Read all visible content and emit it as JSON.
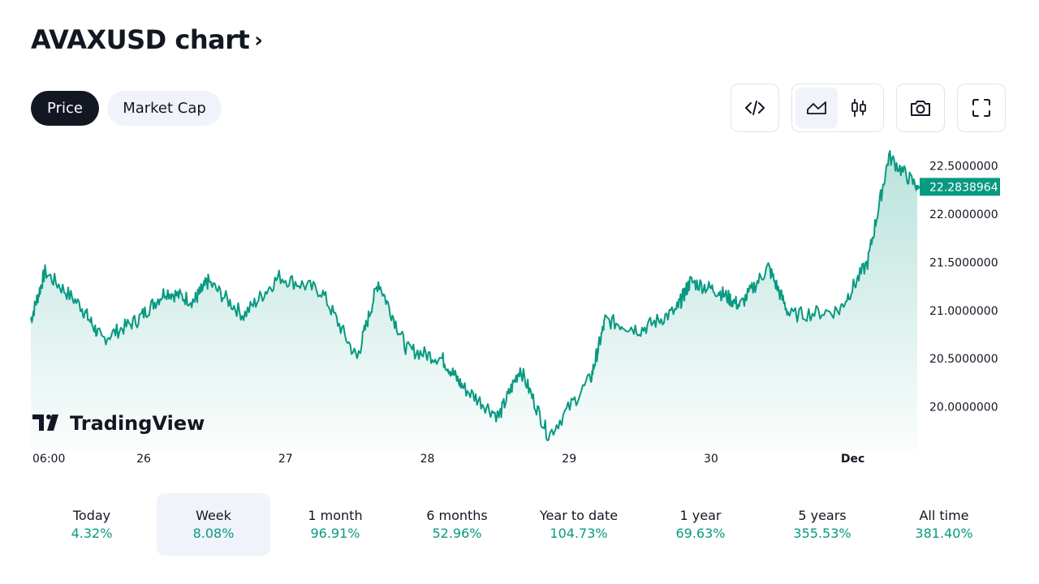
{
  "header": {
    "title": "AVAXUSD chart",
    "chevron": "›"
  },
  "tabs": [
    {
      "label": "Price",
      "active": true
    },
    {
      "label": "Market Cap",
      "active": false
    }
  ],
  "toolbar": {
    "embed_icon": "code-icon",
    "area_icon": "area-chart-icon",
    "candle_icon": "candlestick-icon",
    "snapshot_icon": "camera-icon",
    "fullscreen_icon": "fullscreen-icon"
  },
  "colors": {
    "accent": "#089981",
    "dark": "#131722",
    "light_bg": "#f0f3fa"
  },
  "watermark": "TradingView",
  "chart_data": {
    "type": "area",
    "symbol": "AVAXUSD",
    "current_price": 22.2838964,
    "current_price_label": "22.2838964",
    "y_ticks": [
      "22.5000000",
      "22.0000000",
      "21.5000000",
      "21.0000000",
      "20.5000000",
      "20.0000000"
    ],
    "y_tick_values": [
      22.5,
      22.0,
      21.5,
      21.0,
      20.5,
      20.0
    ],
    "x_ticks": [
      "06:00",
      "26",
      "27",
      "28",
      "29",
      "30",
      "Dec"
    ],
    "x": [
      0,
      0.25,
      0.5,
      0.75,
      1.0,
      1.25,
      1.5,
      1.75,
      2.0,
      2.25,
      2.5,
      2.75,
      3.0,
      3.25,
      3.5,
      3.75,
      4.0,
      4.25,
      4.5,
      4.75,
      5.0,
      5.25,
      5.5,
      5.75,
      6.0,
      6.25
    ],
    "x_tick_positions": [
      0,
      0.75,
      1.75,
      2.75,
      3.75,
      4.75,
      5.75
    ],
    "series": [
      {
        "values": [
          20.9,
          21.4,
          21.05,
          20.7,
          20.9,
          21.2,
          21.1,
          21.3,
          20.95,
          21.35,
          21.2,
          20.5,
          21.3,
          20.6,
          20.5,
          20.2,
          19.9,
          20.4,
          19.7,
          20.3,
          20.9,
          20.8,
          21.0,
          21.3,
          21.2,
          21.05,
          21.45,
          20.95,
          21.0,
          21.5,
          22.6,
          22.28
        ],
        "x_values": [
          0,
          0.1,
          0.35,
          0.5,
          0.75,
          0.95,
          1.15,
          1.25,
          1.5,
          1.75,
          2.05,
          2.3,
          2.45,
          2.65,
          2.9,
          3.05,
          3.3,
          3.45,
          3.65,
          3.95,
          4.05,
          4.3,
          4.55,
          4.65,
          4.85,
          5.0,
          5.2,
          5.35,
          5.7,
          5.9,
          6.05,
          6.25
        ]
      }
    ],
    "ylim": [
      19.55,
      22.75
    ],
    "grid": false
  },
  "periods": [
    {
      "label": "Today",
      "value": "4.32%",
      "active": false
    },
    {
      "label": "Week",
      "value": "8.08%",
      "active": true
    },
    {
      "label": "1 month",
      "value": "96.91%",
      "active": false
    },
    {
      "label": "6 months",
      "value": "52.96%",
      "active": false
    },
    {
      "label": "Year to date",
      "value": "104.73%",
      "active": false
    },
    {
      "label": "1 year",
      "value": "69.63%",
      "active": false
    },
    {
      "label": "5 years",
      "value": "355.53%",
      "active": false
    },
    {
      "label": "All time",
      "value": "381.40%",
      "active": false
    }
  ]
}
